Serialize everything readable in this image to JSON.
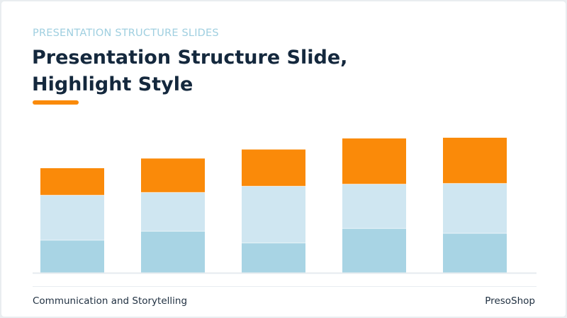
{
  "header": {
    "kicker": "PRESENTATION STRUCTURE SLIDES",
    "title_line1": "Presentation Structure Slide,",
    "title_line2": "Highlight Style"
  },
  "footer": {
    "left": "Communication and Storytelling",
    "right": "PresoShop"
  },
  "colors": {
    "accent": "#fa8a09",
    "segment_bottom": "#a8d4e4",
    "segment_middle": "#cfe6f1",
    "segment_top": "#fa8a09",
    "title": "#14283d",
    "kicker": "#9fcfe0",
    "baseline": "#e5ebef"
  },
  "chart_data": {
    "type": "bar",
    "stacked": true,
    "categories": [
      "",
      "",
      "",
      "",
      ""
    ],
    "series": [
      {
        "values": [
          47,
          60,
          43,
          64,
          57
        ]
      },
      {
        "values": [
          65,
          56,
          82,
          64,
          72
        ]
      },
      {
        "values": [
          39,
          49,
          53,
          66,
          66
        ]
      }
    ],
    "ylim": [
      0,
      200
    ],
    "grid": false,
    "legend": "none"
  }
}
